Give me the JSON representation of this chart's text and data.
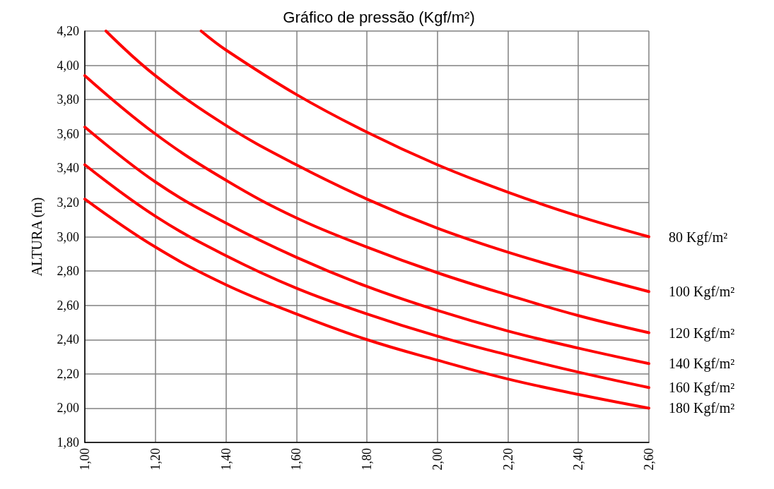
{
  "chart_data": {
    "type": "line",
    "title": "Gráfico de pressão (Kgf/m²)",
    "ylabel": "ALTURA (m)",
    "xlim": [
      1,
      2.6
    ],
    "ylim": [
      1.8,
      4.2
    ],
    "xticks": [
      {
        "value": 1,
        "label": "1,00"
      },
      {
        "value": 1.2,
        "label": "1,20"
      },
      {
        "value": 1.4,
        "label": "1,40"
      },
      {
        "value": 1.6,
        "label": "1,60"
      },
      {
        "value": 1.8,
        "label": "1,80"
      },
      {
        "value": 2,
        "label": "2,00"
      },
      {
        "value": 2.2,
        "label": "2,20"
      },
      {
        "value": 2.4,
        "label": "2,40"
      },
      {
        "value": 2.6,
        "label": "2,60"
      }
    ],
    "yticks": [
      {
        "value": 1.8,
        "label": "1,80"
      },
      {
        "value": 2,
        "label": "2,00"
      },
      {
        "value": 2.2,
        "label": "2,20"
      },
      {
        "value": 2.4,
        "label": "2,40"
      },
      {
        "value": 2.6,
        "label": "2,60"
      },
      {
        "value": 2.8,
        "label": "2,80"
      },
      {
        "value": 3,
        "label": "3,00"
      },
      {
        "value": 3.2,
        "label": "3,20"
      },
      {
        "value": 3.4,
        "label": "3,40"
      },
      {
        "value": 3.6,
        "label": "3,60"
      },
      {
        "value": 3.8,
        "label": "3,80"
      },
      {
        "value": 4,
        "label": "4,00"
      },
      {
        "value": 4.2,
        "label": "4,20"
      }
    ],
    "grid": true,
    "marker": "none",
    "line_style": "solid",
    "series": [
      {
        "name": "80 Kgf/m²",
        "color": "#ff0000",
        "x": [
          1.33,
          1.4,
          1.6,
          1.8,
          2.0,
          2.2,
          2.4,
          2.6
        ],
        "values": [
          4.2,
          4.09,
          3.83,
          3.61,
          3.42,
          3.26,
          3.12,
          3.0
        ]
      },
      {
        "name": "100 Kgf/m²",
        "color": "#ff0000",
        "x": [
          1.06,
          1.2,
          1.4,
          1.6,
          1.8,
          2.0,
          2.2,
          2.4,
          2.6
        ],
        "values": [
          4.2,
          3.94,
          3.65,
          3.42,
          3.22,
          3.05,
          2.91,
          2.79,
          2.68
        ]
      },
      {
        "name": "120 Kgf/m²",
        "color": "#ff0000",
        "x": [
          1.0,
          1.2,
          1.4,
          1.6,
          1.8,
          2.0,
          2.2,
          2.4,
          2.6
        ],
        "values": [
          3.94,
          3.6,
          3.33,
          3.11,
          2.94,
          2.79,
          2.66,
          2.54,
          2.44
        ]
      },
      {
        "name": "140 Kgf/m²",
        "color": "#ff0000",
        "x": [
          1.0,
          1.2,
          1.4,
          1.6,
          1.8,
          2.0,
          2.2,
          2.4,
          2.6
        ],
        "values": [
          3.64,
          3.32,
          3.08,
          2.88,
          2.71,
          2.57,
          2.45,
          2.35,
          2.26
        ]
      },
      {
        "name": "160 Kgf/m²",
        "color": "#ff0000",
        "x": [
          1.0,
          1.2,
          1.4,
          1.6,
          1.8,
          2.0,
          2.2,
          2.4,
          2.6
        ],
        "values": [
          3.42,
          3.12,
          2.89,
          2.7,
          2.55,
          2.42,
          2.31,
          2.21,
          2.12
        ]
      },
      {
        "name": "180 Kgf/m²",
        "color": "#ff0000",
        "x": [
          1.0,
          1.2,
          1.4,
          1.6,
          1.8,
          2.0,
          2.2,
          2.4,
          2.6
        ],
        "values": [
          3.22,
          2.94,
          2.72,
          2.55,
          2.4,
          2.28,
          2.17,
          2.08,
          2.0
        ]
      }
    ]
  }
}
